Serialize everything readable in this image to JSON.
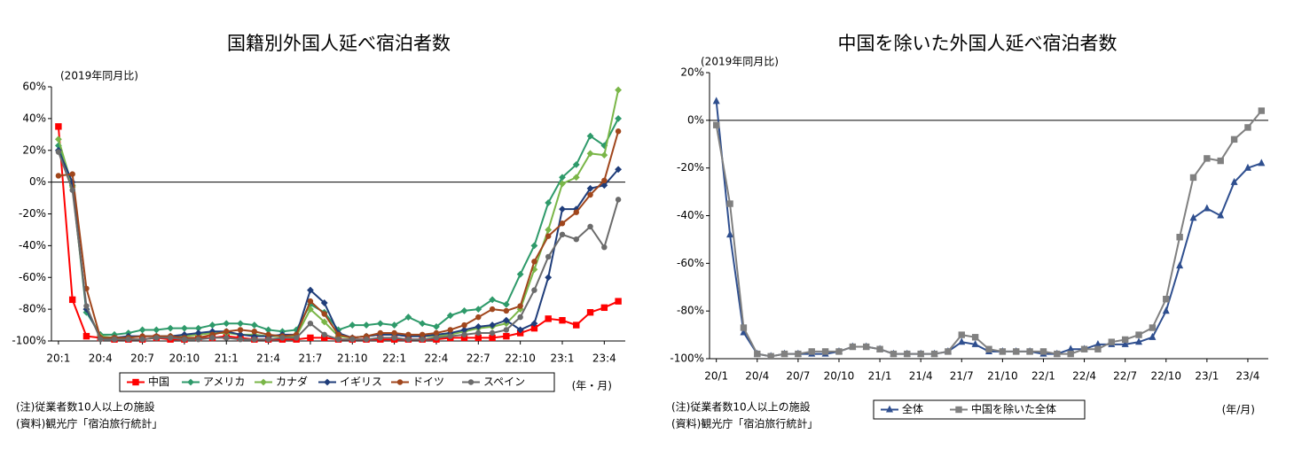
{
  "chart_data": [
    {
      "type": "line",
      "title": "国籍別外国人延べ宿泊者数",
      "y_label": "(2019年同月比)",
      "x_label": "(年・月)",
      "notes": [
        "(注)従業者数10人以上の施設",
        "(資料)観光庁「宿泊旅行統計」"
      ],
      "categories": [
        "20:1",
        null,
        null,
        "20:4",
        null,
        null,
        "20:7",
        null,
        null,
        "20:10",
        null,
        null,
        "21:1",
        null,
        null,
        "21:4",
        null,
        null,
        "21:7",
        null,
        null,
        "21:10",
        null,
        null,
        "22:1",
        null,
        null,
        "22:4",
        null,
        null,
        "22:7",
        null,
        null,
        "22:10",
        null,
        null,
        "23:1",
        null,
        null,
        "23:4",
        null
      ],
      "ylim": [
        -100,
        60
      ],
      "yticks": [
        {
          "value": -100,
          "label": "-100%"
        },
        {
          "value": -80,
          "label": "-80%"
        },
        {
          "value": -60,
          "label": "-60%"
        },
        {
          "value": -40,
          "label": "-40%"
        },
        {
          "value": -20,
          "label": "-20%"
        },
        {
          "value": 0,
          "label": "0%"
        },
        {
          "value": 20,
          "label": "20%"
        },
        {
          "value": 40,
          "label": "40%"
        },
        {
          "value": 60,
          "label": "60%"
        }
      ],
      "grid": false,
      "legend": "bottom",
      "series": [
        {
          "name": "中国",
          "color": "#ff0000",
          "marker": "square",
          "values": [
            35,
            -74,
            -97,
            -98,
            -99,
            -99,
            -99,
            -98,
            -99,
            -99,
            -98,
            -98,
            -97,
            -98,
            -99,
            -99,
            -99,
            -99,
            -98,
            -98,
            -99,
            -99,
            -99,
            -99,
            -99,
            -99,
            -99,
            -99,
            -98,
            -98,
            -98,
            -98,
            -97,
            -95,
            -92,
            -86,
            -87,
            -90,
            -82,
            -79,
            -75
          ]
        },
        {
          "name": "アメリカ",
          "color": "#2e9a6a",
          "marker": "diamond",
          "values": [
            23,
            -2,
            -82,
            -96,
            -96,
            -95,
            -93,
            -93,
            -92,
            -92,
            -92,
            -90,
            -89,
            -89,
            -90,
            -93,
            -94,
            -93,
            -77,
            -82,
            -93,
            -90,
            -90,
            -89,
            -90,
            -85,
            -89,
            -91,
            -84,
            -81,
            -80,
            -74,
            -77,
            -58,
            -40,
            -13,
            3,
            11,
            29,
            23,
            40
          ]
        },
        {
          "name": "カナダ",
          "color": "#7ab648",
          "marker": "diamond",
          "values": [
            27,
            -3,
            -80,
            -97,
            -98,
            -98,
            -97,
            -97,
            -97,
            -97,
            -96,
            -95,
            -95,
            -96,
            -96,
            -97,
            -97,
            -97,
            -80,
            -88,
            -97,
            -98,
            -97,
            -96,
            -96,
            -97,
            -97,
            -97,
            -96,
            -94,
            -92,
            -91,
            -89,
            -80,
            -55,
            -30,
            -1,
            3,
            18,
            17,
            58
          ]
        },
        {
          "name": "イギリス",
          "color": "#1f3d7a",
          "marker": "diamond",
          "values": [
            20,
            0,
            -80,
            -98,
            -98,
            -97,
            -97,
            -97,
            -97,
            -96,
            -95,
            -94,
            -94,
            -96,
            -97,
            -97,
            -96,
            -96,
            -68,
            -76,
            -95,
            -98,
            -97,
            -96,
            -96,
            -97,
            -97,
            -96,
            -95,
            -93,
            -91,
            -90,
            -87,
            -93,
            -89,
            -60,
            -17,
            -17,
            -4,
            -2,
            8
          ]
        },
        {
          "name": "ドイツ",
          "color": "#a0461c",
          "marker": "circle",
          "values": [
            4,
            5,
            -67,
            -98,
            -98,
            -98,
            -97,
            -97,
            -97,
            -98,
            -98,
            -96,
            -94,
            -93,
            -94,
            -96,
            -97,
            -96,
            -75,
            -83,
            -96,
            -98,
            -97,
            -95,
            -95,
            -96,
            -96,
            -95,
            -93,
            -90,
            -85,
            -80,
            -81,
            -78,
            -50,
            -34,
            -26,
            -19,
            -8,
            1,
            32
          ]
        },
        {
          "name": "スペイン",
          "color": "#6b6b6b",
          "marker": "circle",
          "values": [
            19,
            -5,
            -78,
            -99,
            -99,
            -99,
            -99,
            -98,
            -98,
            -99,
            -99,
            -98,
            -98,
            -99,
            -99,
            -99,
            -98,
            -98,
            -89,
            -96,
            -99,
            -99,
            -99,
            -98,
            -98,
            -99,
            -99,
            -98,
            -97,
            -96,
            -95,
            -95,
            -93,
            -85,
            -68,
            -47,
            -33,
            -36,
            -28,
            -41,
            -11
          ]
        }
      ]
    },
    {
      "type": "line",
      "title": "中国を除いた外国人延べ宿泊者数",
      "y_label": "(2019年同月比)",
      "x_label": "(年/月)",
      "notes": [
        "(注)従業者数10人以上の施設",
        "(資料)観光庁「宿泊旅行統計」"
      ],
      "categories": [
        "20/1",
        null,
        null,
        "20/4",
        null,
        null,
        "20/7",
        null,
        null,
        "20/10",
        null,
        null,
        "21/1",
        null,
        null,
        "21/4",
        null,
        null,
        "21/7",
        null,
        null,
        "21/10",
        null,
        null,
        "22/1",
        null,
        null,
        "22/4",
        null,
        null,
        "22/7",
        null,
        null,
        "22/10",
        null,
        null,
        "23/1",
        null,
        null,
        "23/4",
        null
      ],
      "ylim": [
        -100,
        20
      ],
      "yticks": [
        {
          "value": -100,
          "label": "-100%"
        },
        {
          "value": -80,
          "label": "-80%"
        },
        {
          "value": -60,
          "label": "-60%"
        },
        {
          "value": -40,
          "label": "-40%"
        },
        {
          "value": -20,
          "label": "-20%"
        },
        {
          "value": 0,
          "label": "0%"
        },
        {
          "value": 20,
          "label": "20%"
        }
      ],
      "grid": false,
      "legend": "bottom",
      "series": [
        {
          "name": "全体",
          "color": "#2f4f8f",
          "marker": "triangle",
          "values": [
            8,
            -48,
            -89,
            -98,
            -99,
            -98,
            -98,
            -98,
            -98,
            -97,
            -95,
            -95,
            -96,
            -98,
            -98,
            -98,
            -98,
            -97,
            -93,
            -94,
            -97,
            -97,
            -97,
            -97,
            -98,
            -98,
            -96,
            -96,
            -94,
            -94,
            -94,
            -93,
            -91,
            -80,
            -61,
            -41,
            -37,
            -40,
            -26,
            -20,
            -18
          ]
        },
        {
          "name": "中国を除いた全体",
          "color": "#808080",
          "marker": "square",
          "values": [
            -2,
            -35,
            -87,
            -98,
            -99,
            -98,
            -98,
            -97,
            -97,
            -97,
            -95,
            -95,
            -96,
            -98,
            -98,
            -98,
            -98,
            -97,
            -90,
            -91,
            -96,
            -97,
            -97,
            -97,
            -97,
            -98,
            -98,
            -96,
            -96,
            -93,
            -92,
            -90,
            -87,
            -75,
            -49,
            -24,
            -16,
            -17,
            -8,
            -3,
            4
          ]
        }
      ]
    }
  ]
}
